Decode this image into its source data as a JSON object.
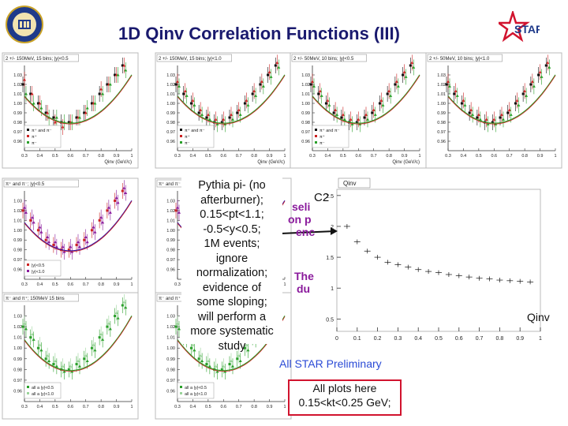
{
  "header": {
    "title": "1D Qinv Correlation Functions (III)",
    "star_logo": "STAR"
  },
  "panels": [
    {
      "title": "2 +/- 150MeV, 15 bins; |y|<0.5",
      "xlabel": "Qinv (GeV/c)",
      "legend": [
        "π⁺ and π⁻",
        "π⁺",
        "π⁻"
      ],
      "legend_colors": [
        "#111111",
        "#cc2222",
        "#2aa02a"
      ]
    },
    {
      "title": "2 +/- 150MeV, 15 bins; |y|<1.0",
      "xlabel": "Qinv (GeV/c)",
      "legend": [
        "π⁺ and π⁻",
        "π⁺",
        "π⁻"
      ],
      "legend_colors": [
        "#111111",
        "#cc2222",
        "#2aa02a"
      ]
    },
    {
      "title": "2 +/- 50MeV, 10 bins; |y|<0.5",
      "xlabel": "Qinv (GeV/c)",
      "legend": [
        "π⁺ and π⁻",
        "π⁺",
        "π⁻"
      ],
      "legend_colors": [
        "#111111",
        "#cc2222",
        "#2aa02a"
      ]
    },
    {
      "title": "2 +/- 50MeV, 10 bins; |y|<1.0",
      "xlabel": "",
      "legend": [],
      "legend_colors": []
    },
    {
      "title": "π⁺ and π⁻; |y|<0.5",
      "xlabel": "",
      "legend": [
        "|y|<0.5",
        "|y|<1.0"
      ],
      "legend_colors": [
        "#cc2222",
        "#8a1a9c"
      ]
    },
    {
      "title": "π⁺ and π⁻",
      "xlabel": "",
      "legend": [],
      "legend_colors": []
    },
    {
      "title": "π⁻ and π⁺; 150MeV 15 bins",
      "xlabel": "",
      "legend": [
        "all a |y|<0.5",
        "all a |y|<1.0"
      ],
      "legend_colors": [
        "#2aa02a",
        "#9ad49a"
      ]
    },
    {
      "title": "π⁻ and π⁺",
      "xlabel": "",
      "legend": [
        "all a |y|<0.5",
        "all a |y|<1.0"
      ],
      "legend_colors": [
        "#2aa02a",
        "#9ad49a"
      ]
    }
  ],
  "chart_data": [
    {
      "type": "scatter",
      "title": "2 +/- 150MeV, 15 bins; |y|<0.5",
      "xlabel": "Qinv (GeV/c)",
      "ylabel": "",
      "x": [
        0.3,
        0.35,
        0.4,
        0.45,
        0.5,
        0.55,
        0.6,
        0.65,
        0.7,
        0.75,
        0.8,
        0.85,
        0.9,
        0.95
      ],
      "series": [
        {
          "name": "π⁺ and π⁻",
          "values": [
            1.02,
            1.01,
            1.0,
            0.99,
            0.985,
            0.98,
            0.98,
            0.985,
            0.99,
            1.0,
            1.01,
            1.02,
            1.03,
            1.04
          ]
        },
        {
          "name": "π⁺",
          "values": [
            1.025,
            1.01,
            1.0,
            0.99,
            0.98,
            0.975,
            0.98,
            0.985,
            0.99,
            1.0,
            1.015,
            1.02,
            1.03,
            1.04
          ]
        },
        {
          "name": "π⁻",
          "values": [
            1.01,
            1.0,
            0.995,
            0.985,
            0.985,
            0.98,
            0.98,
            0.985,
            0.995,
            1.0,
            1.01,
            1.02,
            1.03,
            1.035
          ]
        }
      ],
      "xlim": [
        0.3,
        1.0
      ],
      "ylim": [
        0.95,
        1.04
      ],
      "yticks": [
        "1.03",
        "1.02",
        "1.01",
        "1.00",
        "0.99",
        "0.98",
        "0.97",
        "0.96"
      ]
    },
    {
      "type": "scatter",
      "title": "2 +/- 150MeV, 15 bins; |y|<1.0",
      "xlabel": "Qinv (GeV/c)",
      "ylabel": "",
      "x": [
        0.3,
        0.35,
        0.4,
        0.45,
        0.5,
        0.55,
        0.6,
        0.65,
        0.7,
        0.75,
        0.8,
        0.85,
        0.9,
        0.95
      ],
      "series": [
        {
          "name": "π⁺ and π⁻",
          "values": [
            1.02,
            1.01,
            1.0,
            0.99,
            0.985,
            0.98,
            0.98,
            0.985,
            0.99,
            1.0,
            1.01,
            1.02,
            1.03,
            1.04
          ]
        }
      ],
      "xlim": [
        0.3,
        1.0
      ],
      "ylim": [
        0.95,
        1.04
      ],
      "yticks": [
        "1.03",
        "1.02",
        "1.01",
        "1.00",
        "0.99",
        "0.98",
        "0.97",
        "0.96"
      ]
    },
    {
      "type": "scatter",
      "title": "2 +/- 50MeV, 10 bins; |y|<0.5",
      "xlabel": "Qinv (GeV/c)",
      "ylabel": "",
      "x": [
        0.3,
        0.35,
        0.4,
        0.45,
        0.5,
        0.55,
        0.6,
        0.65,
        0.7,
        0.75,
        0.8,
        0.85,
        0.9,
        0.95
      ],
      "series": [
        {
          "name": "π⁺ and π⁻",
          "values": [
            1.02,
            1.01,
            1.0,
            0.99,
            0.985,
            0.98,
            0.98,
            0.985,
            0.99,
            1.0,
            1.01,
            1.02,
            1.03,
            1.04
          ]
        }
      ],
      "xlim": [
        0.3,
        1.0
      ],
      "ylim": [
        0.95,
        1.04
      ],
      "yticks": [
        "1.03",
        "1.02",
        "1.01",
        "1.00",
        "0.99",
        "0.98",
        "0.97",
        "0.96"
      ]
    },
    {
      "type": "line",
      "title": "Qinv",
      "xlabel": "",
      "ylabel": "C2",
      "x": [
        0.05,
        0.1,
        0.15,
        0.2,
        0.25,
        0.3,
        0.35,
        0.4,
        0.45,
        0.5,
        0.55,
        0.6,
        0.65,
        0.7,
        0.75,
        0.8,
        0.85,
        0.9,
        0.95
      ],
      "series": [
        {
          "name": "",
          "values": [
            2.0,
            1.75,
            1.6,
            1.5,
            1.42,
            1.38,
            1.34,
            1.3,
            1.27,
            1.25,
            1.22,
            1.2,
            1.18,
            1.16,
            1.15,
            1.13,
            1.12,
            1.11,
            1.1
          ]
        }
      ],
      "xlim": [
        0,
        1
      ],
      "ylim": [
        0.3,
        2.6
      ],
      "xticks": [
        "0",
        "0.1",
        "0.2",
        "0.3",
        "0.4",
        "0.5",
        "0.6",
        "0.7",
        "0.8",
        "0.9",
        "1"
      ],
      "yticks": [
        "2.5",
        "2",
        "1.5",
        "1",
        "0.5"
      ]
    }
  ],
  "c2_label": "C2",
  "qinv_label": "Qinv",
  "note_lines": [
    "Pythia pi- (no",
    "afterburner);",
    "0.15<pt<1.1;",
    "-0.5<y<0.5;",
    "1M events;",
    "ignore",
    "normalization;",
    "evidence of",
    "some sloping;",
    "will perform a",
    "more systematic",
    "study"
  ],
  "fragments": [
    "seli",
    "on p",
    "enc",
    "The",
    "du"
  ],
  "preliminary": "All STAR Preliminary",
  "allplots_lines": [
    "All plots here",
    "0.15<kt<0.25 GeV;"
  ],
  "colors": {
    "title": "#1a1a6e",
    "accent_red": "#d1132e",
    "preliminary": "#2b4bd6"
  }
}
